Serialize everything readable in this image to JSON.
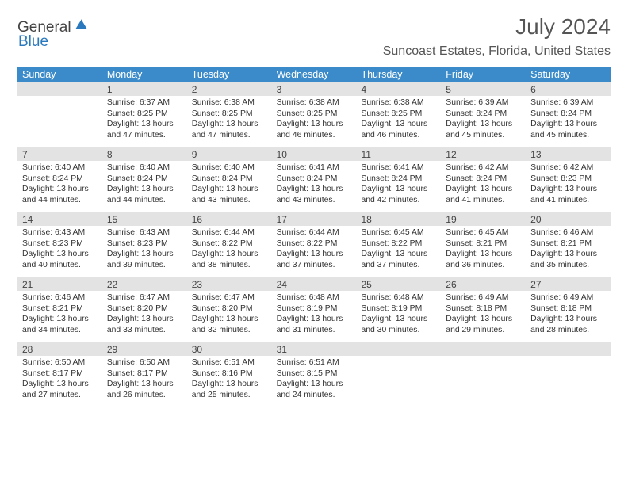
{
  "brand": {
    "general": "General",
    "blue": "Blue"
  },
  "title": "July 2024",
  "location": "Suncoast Estates, Florida, United States",
  "colors": {
    "header_bg": "#3b8bca",
    "week_divider": "#2a78bd",
    "daynum_bg": "#e3e3e3",
    "text": "#333333",
    "title_text": "#555555"
  },
  "weekdays": [
    "Sunday",
    "Monday",
    "Tuesday",
    "Wednesday",
    "Thursday",
    "Friday",
    "Saturday"
  ],
  "weeks": [
    [
      {
        "num": "",
        "sunrise": "",
        "sunset": "",
        "daylight": ""
      },
      {
        "num": "1",
        "sunrise": "Sunrise: 6:37 AM",
        "sunset": "Sunset: 8:25 PM",
        "daylight": "Daylight: 13 hours and 47 minutes."
      },
      {
        "num": "2",
        "sunrise": "Sunrise: 6:38 AM",
        "sunset": "Sunset: 8:25 PM",
        "daylight": "Daylight: 13 hours and 47 minutes."
      },
      {
        "num": "3",
        "sunrise": "Sunrise: 6:38 AM",
        "sunset": "Sunset: 8:25 PM",
        "daylight": "Daylight: 13 hours and 46 minutes."
      },
      {
        "num": "4",
        "sunrise": "Sunrise: 6:38 AM",
        "sunset": "Sunset: 8:25 PM",
        "daylight": "Daylight: 13 hours and 46 minutes."
      },
      {
        "num": "5",
        "sunrise": "Sunrise: 6:39 AM",
        "sunset": "Sunset: 8:24 PM",
        "daylight": "Daylight: 13 hours and 45 minutes."
      },
      {
        "num": "6",
        "sunrise": "Sunrise: 6:39 AM",
        "sunset": "Sunset: 8:24 PM",
        "daylight": "Daylight: 13 hours and 45 minutes."
      }
    ],
    [
      {
        "num": "7",
        "sunrise": "Sunrise: 6:40 AM",
        "sunset": "Sunset: 8:24 PM",
        "daylight": "Daylight: 13 hours and 44 minutes."
      },
      {
        "num": "8",
        "sunrise": "Sunrise: 6:40 AM",
        "sunset": "Sunset: 8:24 PM",
        "daylight": "Daylight: 13 hours and 44 minutes."
      },
      {
        "num": "9",
        "sunrise": "Sunrise: 6:40 AM",
        "sunset": "Sunset: 8:24 PM",
        "daylight": "Daylight: 13 hours and 43 minutes."
      },
      {
        "num": "10",
        "sunrise": "Sunrise: 6:41 AM",
        "sunset": "Sunset: 8:24 PM",
        "daylight": "Daylight: 13 hours and 43 minutes."
      },
      {
        "num": "11",
        "sunrise": "Sunrise: 6:41 AM",
        "sunset": "Sunset: 8:24 PM",
        "daylight": "Daylight: 13 hours and 42 minutes."
      },
      {
        "num": "12",
        "sunrise": "Sunrise: 6:42 AM",
        "sunset": "Sunset: 8:24 PM",
        "daylight": "Daylight: 13 hours and 41 minutes."
      },
      {
        "num": "13",
        "sunrise": "Sunrise: 6:42 AM",
        "sunset": "Sunset: 8:23 PM",
        "daylight": "Daylight: 13 hours and 41 minutes."
      }
    ],
    [
      {
        "num": "14",
        "sunrise": "Sunrise: 6:43 AM",
        "sunset": "Sunset: 8:23 PM",
        "daylight": "Daylight: 13 hours and 40 minutes."
      },
      {
        "num": "15",
        "sunrise": "Sunrise: 6:43 AM",
        "sunset": "Sunset: 8:23 PM",
        "daylight": "Daylight: 13 hours and 39 minutes."
      },
      {
        "num": "16",
        "sunrise": "Sunrise: 6:44 AM",
        "sunset": "Sunset: 8:22 PM",
        "daylight": "Daylight: 13 hours and 38 minutes."
      },
      {
        "num": "17",
        "sunrise": "Sunrise: 6:44 AM",
        "sunset": "Sunset: 8:22 PM",
        "daylight": "Daylight: 13 hours and 37 minutes."
      },
      {
        "num": "18",
        "sunrise": "Sunrise: 6:45 AM",
        "sunset": "Sunset: 8:22 PM",
        "daylight": "Daylight: 13 hours and 37 minutes."
      },
      {
        "num": "19",
        "sunrise": "Sunrise: 6:45 AM",
        "sunset": "Sunset: 8:21 PM",
        "daylight": "Daylight: 13 hours and 36 minutes."
      },
      {
        "num": "20",
        "sunrise": "Sunrise: 6:46 AM",
        "sunset": "Sunset: 8:21 PM",
        "daylight": "Daylight: 13 hours and 35 minutes."
      }
    ],
    [
      {
        "num": "21",
        "sunrise": "Sunrise: 6:46 AM",
        "sunset": "Sunset: 8:21 PM",
        "daylight": "Daylight: 13 hours and 34 minutes."
      },
      {
        "num": "22",
        "sunrise": "Sunrise: 6:47 AM",
        "sunset": "Sunset: 8:20 PM",
        "daylight": "Daylight: 13 hours and 33 minutes."
      },
      {
        "num": "23",
        "sunrise": "Sunrise: 6:47 AM",
        "sunset": "Sunset: 8:20 PM",
        "daylight": "Daylight: 13 hours and 32 minutes."
      },
      {
        "num": "24",
        "sunrise": "Sunrise: 6:48 AM",
        "sunset": "Sunset: 8:19 PM",
        "daylight": "Daylight: 13 hours and 31 minutes."
      },
      {
        "num": "25",
        "sunrise": "Sunrise: 6:48 AM",
        "sunset": "Sunset: 8:19 PM",
        "daylight": "Daylight: 13 hours and 30 minutes."
      },
      {
        "num": "26",
        "sunrise": "Sunrise: 6:49 AM",
        "sunset": "Sunset: 8:18 PM",
        "daylight": "Daylight: 13 hours and 29 minutes."
      },
      {
        "num": "27",
        "sunrise": "Sunrise: 6:49 AM",
        "sunset": "Sunset: 8:18 PM",
        "daylight": "Daylight: 13 hours and 28 minutes."
      }
    ],
    [
      {
        "num": "28",
        "sunrise": "Sunrise: 6:50 AM",
        "sunset": "Sunset: 8:17 PM",
        "daylight": "Daylight: 13 hours and 27 minutes."
      },
      {
        "num": "29",
        "sunrise": "Sunrise: 6:50 AM",
        "sunset": "Sunset: 8:17 PM",
        "daylight": "Daylight: 13 hours and 26 minutes."
      },
      {
        "num": "30",
        "sunrise": "Sunrise: 6:51 AM",
        "sunset": "Sunset: 8:16 PM",
        "daylight": "Daylight: 13 hours and 25 minutes."
      },
      {
        "num": "31",
        "sunrise": "Sunrise: 6:51 AM",
        "sunset": "Sunset: 8:15 PM",
        "daylight": "Daylight: 13 hours and 24 minutes."
      },
      {
        "num": "",
        "sunrise": "",
        "sunset": "",
        "daylight": ""
      },
      {
        "num": "",
        "sunrise": "",
        "sunset": "",
        "daylight": ""
      },
      {
        "num": "",
        "sunrise": "",
        "sunset": "",
        "daylight": ""
      }
    ]
  ]
}
